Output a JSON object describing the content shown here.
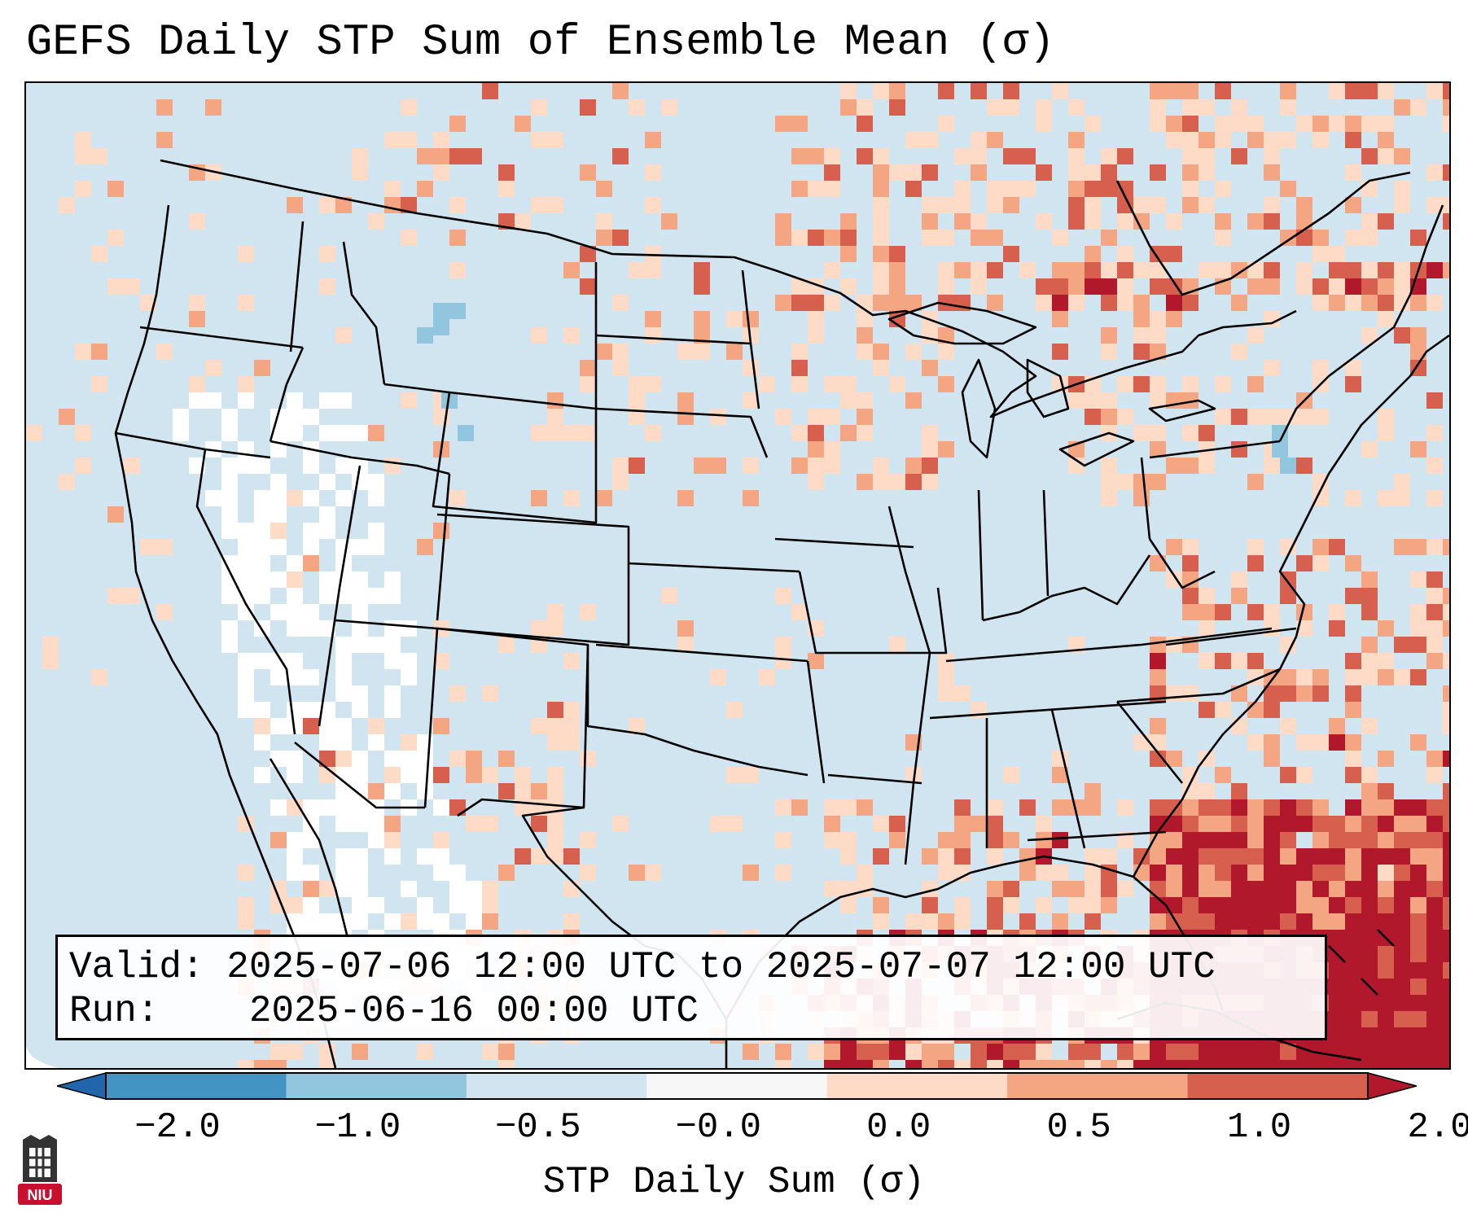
{
  "title": "GEFS Daily STP Sum of Ensemble Mean (σ)",
  "map": {
    "projection": "lambert-conformal-conus",
    "background_color": "#d1e5f0",
    "fill_color_low_positive": "#fddbc7",
    "fill_color_mid_positive": "#f4a582",
    "fill_color_high_positive": "#d6604d",
    "fill_color_max_positive": "#b2182b",
    "fill_color_neg": "#92c5de",
    "fill_color_neutral": "#ffffff",
    "boundary_color": "#000000"
  },
  "info": {
    "valid_label": "Valid:",
    "valid_text": "2025-07-06 12:00 UTC to 2025-07-07 12:00 UTC",
    "run_label": "Run:",
    "run_text": "2025-06-16 00:00 UTC"
  },
  "colorbar": {
    "label": "STP Daily Sum (σ)",
    "ticks": [
      "−2.0",
      "−1.0",
      "−0.5",
      "−0.0",
      "0.0",
      "0.5",
      "1.0",
      "2.0"
    ],
    "colors": [
      "#2166ac",
      "#4393c3",
      "#92c5de",
      "#d1e5f0",
      "#f7f7f7",
      "#fddbc7",
      "#f4a582",
      "#d6604d",
      "#b2182b"
    ]
  },
  "logo": {
    "text": "NIU"
  }
}
